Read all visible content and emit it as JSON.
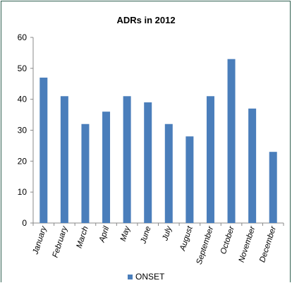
{
  "chart_data": {
    "type": "bar",
    "title": "ADRs in 2012",
    "categories": [
      "January",
      "February",
      "March",
      "April",
      "May",
      "June",
      "July",
      "August",
      "September",
      "October",
      "November",
      "December"
    ],
    "series": [
      {
        "name": "ONSET",
        "values": [
          47,
          41,
          32,
          36,
          41,
          39,
          32,
          28,
          41,
          53,
          37,
          23
        ],
        "color": "#4a7ebb"
      }
    ],
    "xlabel": "",
    "ylabel": "",
    "ylim": [
      0,
      60
    ],
    "yticks": [
      0,
      10,
      20,
      30,
      40,
      50,
      60
    ],
    "grid": false,
    "legend": "bottom"
  }
}
